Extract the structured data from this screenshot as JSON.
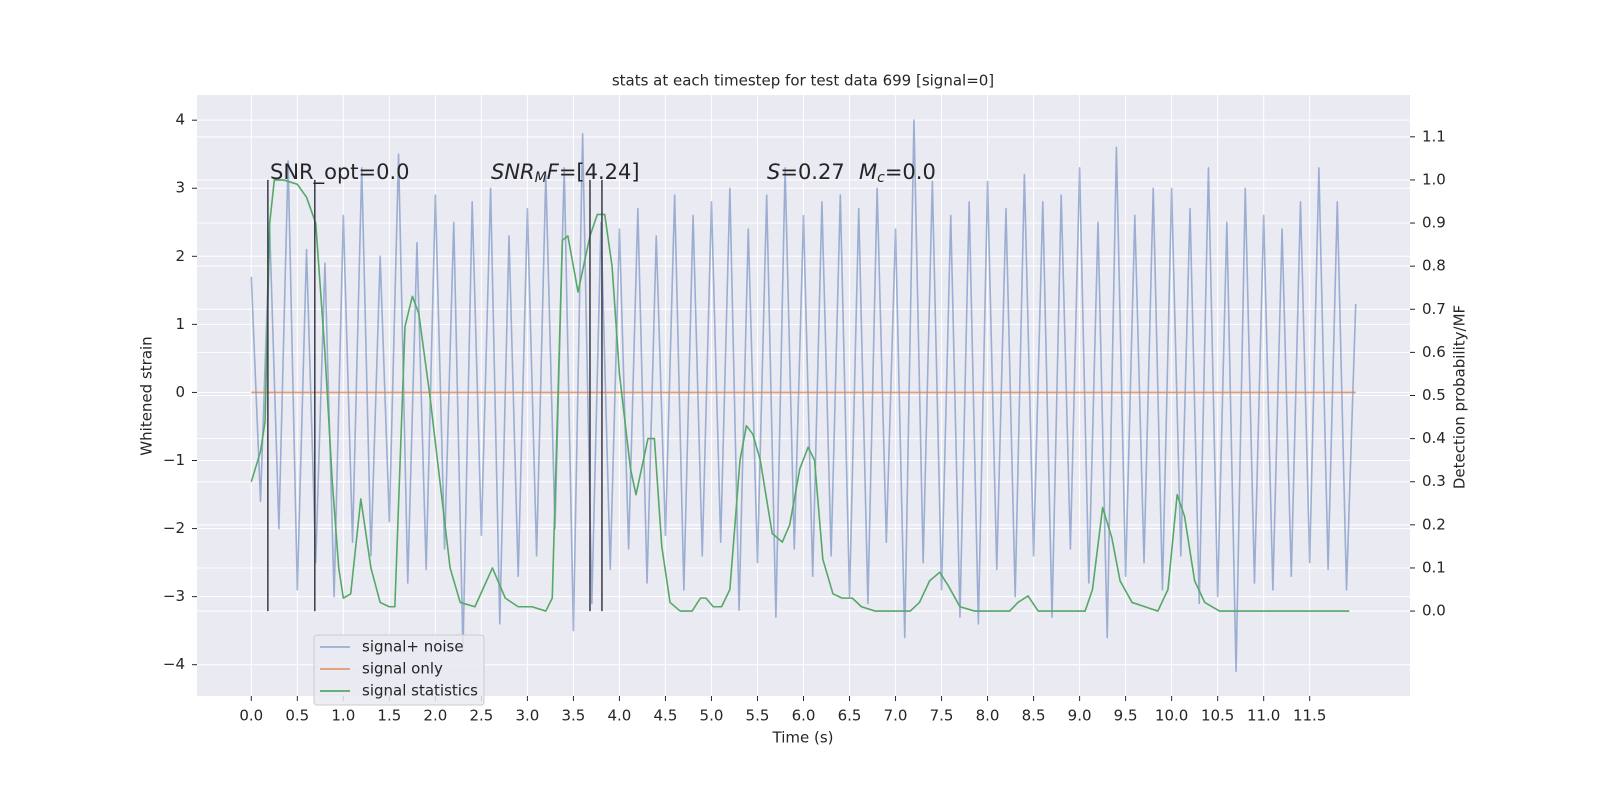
{
  "chart_data": {
    "type": "line",
    "title": "stats at each timestep for test data 699 [signal=0]",
    "x_label": "Time (s)",
    "y_label": "Whitened strain",
    "y2_label": "Detection probability/MF",
    "xlim": [
      -0.59,
      12.59
    ],
    "ylim": [
      -4.46,
      4.37
    ],
    "y2lim": [
      -0.197,
      1.197
    ],
    "grid": true,
    "legend": "lower left",
    "xticks": [
      {
        "value": 0,
        "label": "0.0"
      },
      0.5,
      {
        "value": 1,
        "label": "1.0"
      },
      1.5,
      {
        "value": 2,
        "label": "2.0"
      },
      2.5,
      {
        "value": 3,
        "label": "3.0"
      },
      3.5,
      {
        "value": 4,
        "label": "4.0"
      },
      4.5,
      {
        "value": 5,
        "label": "5.0"
      },
      5.5,
      {
        "value": 6,
        "label": "6.0"
      },
      6.5,
      {
        "value": 7,
        "label": "7.0"
      },
      7.5,
      {
        "value": 8,
        "label": "8.0"
      },
      8.5,
      {
        "value": 9,
        "label": "9.0"
      },
      9.5,
      {
        "value": 10,
        "label": "10.0"
      },
      10.5,
      {
        "value": 11,
        "label": "11.0"
      },
      11.5
    ],
    "yticks": [
      {
        "value": -4,
        "label": "−4"
      },
      {
        "value": -3,
        "label": "−3"
      },
      {
        "value": -2,
        "label": "−2"
      },
      {
        "value": -1,
        "label": "−1"
      },
      0,
      1,
      2,
      3,
      4
    ],
    "y2ticks": [
      {
        "value": 0,
        "label": "0.0"
      },
      0.1,
      0.2,
      0.3,
      0.4,
      0.5,
      0.6,
      0.7,
      0.8,
      0.9,
      {
        "value": 1,
        "label": "1.0"
      },
      1.1
    ],
    "annotations": [
      [
        "SNR_opt=0.0"
      ],
      [
        "SNR",
        "M",
        "F",
        "=[4.24]"
      ],
      [
        "S",
        "=0.27"
      ],
      [
        "M",
        "c",
        "=0.0"
      ]
    ],
    "vlines": {
      "x": [
        0.18,
        0.69,
        3.68,
        3.81
      ],
      "ymin": 0,
      "ymax": 1,
      "axis": "y2",
      "color": "#3a3a48"
    },
    "series": [
      {
        "name": "signal+ noise",
        "color": "#4c72b0",
        "alpha": 0.5,
        "x": [
          0.0,
          0.1,
          0.2,
          0.3,
          0.4,
          0.5,
          0.6,
          0.7,
          0.8,
          0.9,
          1.0,
          1.1,
          1.2,
          1.3,
          1.4,
          1.5,
          1.6,
          1.7,
          1.8,
          1.9,
          2.0,
          2.1,
          2.2,
          2.3,
          2.4,
          2.5,
          2.6,
          2.7,
          2.8,
          2.9,
          3.0,
          3.1,
          3.2,
          3.3,
          3.4,
          3.5,
          3.6,
          3.7,
          3.8,
          3.9,
          4.0,
          4.1,
          4.2,
          4.3,
          4.4,
          4.5,
          4.6,
          4.7,
          4.8,
          4.9,
          5.0,
          5.1,
          5.2,
          5.3,
          5.4,
          5.5,
          5.6,
          5.7,
          5.8,
          5.9,
          6.0,
          6.1,
          6.2,
          6.3,
          6.4,
          6.5,
          6.6,
          6.7,
          6.8,
          6.9,
          7.0,
          7.1,
          7.2,
          7.3,
          7.4,
          7.5,
          7.6,
          7.7,
          7.8,
          7.9,
          8.0,
          8.1,
          8.2,
          8.3,
          8.4,
          8.5,
          8.6,
          8.7,
          8.8,
          8.9,
          9.0,
          9.1,
          9.2,
          9.3,
          9.4,
          9.5,
          9.6,
          9.7,
          9.8,
          9.9,
          10.0,
          10.1,
          10.2,
          10.3,
          10.4,
          10.5,
          10.6,
          10.7,
          10.8,
          10.9,
          11.0,
          11.1,
          11.2,
          11.3,
          11.4,
          11.5,
          11.6,
          11.7,
          11.8,
          11.9,
          12.0
        ],
        "values": [
          1.7,
          -1.6,
          2.4,
          -2.0,
          3.4,
          -2.9,
          2.1,
          -2.5,
          1.9,
          -3.0,
          2.6,
          -2.2,
          3.3,
          -2.4,
          2.0,
          -1.9,
          3.5,
          -2.8,
          2.2,
          -2.6,
          2.9,
          -2.3,
          2.5,
          -3.8,
          2.8,
          -2.1,
          3.0,
          -3.4,
          2.3,
          -2.7,
          2.7,
          -2.4,
          3.2,
          -2.0,
          3.3,
          -3.5,
          3.8,
          -3.1,
          2.5,
          -2.6,
          2.4,
          -2.3,
          2.7,
          -2.8,
          2.3,
          -2.1,
          2.9,
          -2.9,
          2.6,
          -2.4,
          2.8,
          -2.2,
          3.0,
          -3.2,
          2.4,
          -2.5,
          2.9,
          -3.3,
          3.3,
          -2.3,
          2.6,
          -2.7,
          2.8,
          -2.4,
          2.9,
          -3.0,
          2.7,
          -3.1,
          3.0,
          -2.2,
          2.4,
          -3.6,
          4.0,
          -2.5,
          3.1,
          -2.9,
          2.6,
          -3.3,
          2.8,
          -3.4,
          3.1,
          -2.6,
          2.7,
          -3.0,
          3.2,
          -2.4,
          2.8,
          -3.3,
          2.9,
          -2.3,
          3.3,
          -2.8,
          2.5,
          -3.6,
          3.6,
          -2.7,
          2.6,
          -2.5,
          3.0,
          -2.9,
          3.0,
          -2.4,
          2.7,
          -3.1,
          3.3,
          -3.0,
          2.5,
          -4.1,
          3.0,
          -2.8,
          2.6,
          -2.9,
          2.4,
          -2.7,
          2.8,
          -2.5,
          3.3,
          -2.6,
          2.8,
          -2.9,
          1.3
        ]
      },
      {
        "name": "signal only",
        "color": "#dd8452",
        "alpha": 0.8,
        "x": [
          0.0,
          12.0
        ],
        "values": [
          0,
          0
        ]
      },
      {
        "name": "signal statistics",
        "color": "#55a868",
        "alpha": 1,
        "axis": "y2",
        "x": [
          0.0,
          0.1,
          0.15,
          0.2,
          0.25,
          0.35,
          0.5,
          0.6,
          0.7,
          0.8,
          0.88,
          0.95,
          1.0,
          1.08,
          1.19,
          1.3,
          1.4,
          1.5,
          1.56,
          1.67,
          1.75,
          1.82,
          1.94,
          2.05,
          2.16,
          2.27,
          2.43,
          2.62,
          2.76,
          2.9,
          3.05,
          3.2,
          3.27,
          3.38,
          3.44,
          3.55,
          3.68,
          3.76,
          3.84,
          3.92,
          4.0,
          4.12,
          4.18,
          4.31,
          4.38,
          4.46,
          4.55,
          4.66,
          4.79,
          4.88,
          4.94,
          5.02,
          5.11,
          5.2,
          5.31,
          5.38,
          5.45,
          5.53,
          5.66,
          5.77,
          5.85,
          5.96,
          6.05,
          6.12,
          6.21,
          6.32,
          6.42,
          6.53,
          6.63,
          6.78,
          7.16,
          7.26,
          7.37,
          7.48,
          7.57,
          7.7,
          7.86,
          8.24,
          8.33,
          8.44,
          8.55,
          9.06,
          9.14,
          9.25,
          9.35,
          9.44,
          9.57,
          9.71,
          9.85,
          9.96,
          10.06,
          10.14,
          10.25,
          10.36,
          10.52,
          11.93
        ],
        "values": [
          0.3,
          0.37,
          0.44,
          0.9,
          1.0,
          1.0,
          0.99,
          0.96,
          0.9,
          0.6,
          0.3,
          0.1,
          0.03,
          0.04,
          0.26,
          0.1,
          0.02,
          0.01,
          0.01,
          0.66,
          0.73,
          0.69,
          0.5,
          0.3,
          0.1,
          0.02,
          0.01,
          0.1,
          0.03,
          0.01,
          0.01,
          0.0,
          0.03,
          0.86,
          0.87,
          0.74,
          0.87,
          0.92,
          0.92,
          0.8,
          0.55,
          0.33,
          0.27,
          0.4,
          0.4,
          0.15,
          0.02,
          0.0,
          0.0,
          0.03,
          0.03,
          0.01,
          0.01,
          0.05,
          0.35,
          0.43,
          0.41,
          0.35,
          0.18,
          0.16,
          0.2,
          0.33,
          0.38,
          0.35,
          0.12,
          0.04,
          0.03,
          0.03,
          0.01,
          0.0,
          0.0,
          0.02,
          0.07,
          0.09,
          0.06,
          0.01,
          0.0,
          0.0,
          0.02,
          0.035,
          0.0,
          0.0,
          0.05,
          0.24,
          0.17,
          0.07,
          0.02,
          0.01,
          0.0,
          0.05,
          0.27,
          0.22,
          0.07,
          0.02,
          0.0,
          0.0
        ]
      }
    ]
  }
}
